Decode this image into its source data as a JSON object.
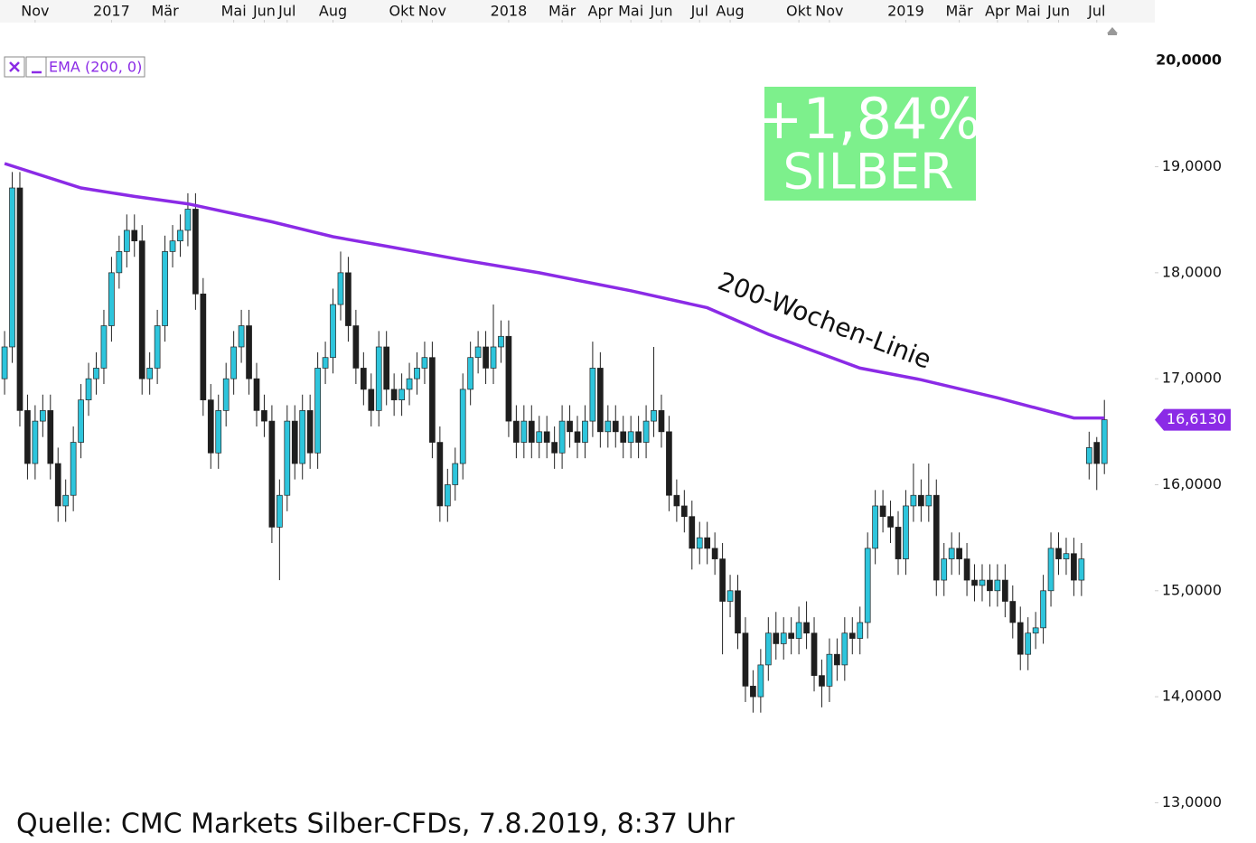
{
  "chart_data": {
    "type": "candlestick",
    "source": "Quelle: CMC Markets Silber-CFDs, 7.8.2019, 8:37 Uhr",
    "badge": {
      "change": "+1,84%",
      "name": "SILBER"
    },
    "annotation": "200-Wochen-Linie",
    "last_price": {
      "value": 16.613,
      "label": "16,6130"
    },
    "up_color": "#2ec5dc",
    "down_color": "#1e1e1e",
    "xlim": [
      -0.6,
      150.6
    ],
    "ylim": [
      12.62,
      20.36
    ],
    "yticks": [
      {
        "value": 13,
        "label": "13,0000"
      },
      {
        "value": 14,
        "label": "14,0000"
      },
      {
        "value": 15,
        "label": "15,0000"
      },
      {
        "value": 16,
        "label": "16,0000"
      },
      {
        "value": 17,
        "label": "17,0000"
      },
      {
        "value": 18,
        "label": "18,0000"
      },
      {
        "value": 19,
        "label": "19,0000"
      },
      {
        "value": 20,
        "label": "20,0000"
      }
    ],
    "xticks": [
      {
        "value": 4,
        "label": "Nov"
      },
      {
        "value": 14,
        "label": "2017"
      },
      {
        "value": 21,
        "label": "Mär"
      },
      {
        "value": 30,
        "label": "Mai"
      },
      {
        "value": 34,
        "label": "Jun"
      },
      {
        "value": 37,
        "label": "Jul"
      },
      {
        "value": 43,
        "label": "Aug"
      },
      {
        "value": 52,
        "label": "Okt"
      },
      {
        "value": 56,
        "label": "Nov"
      },
      {
        "value": 66,
        "label": "2018"
      },
      {
        "value": 73,
        "label": "Mär"
      },
      {
        "value": 78,
        "label": "Apr"
      },
      {
        "value": 82,
        "label": "Mai"
      },
      {
        "value": 86,
        "label": "Jun"
      },
      {
        "value": 91,
        "label": "Jul"
      },
      {
        "value": 95,
        "label": "Aug"
      },
      {
        "value": 104,
        "label": "Okt"
      },
      {
        "value": 108,
        "label": "Nov"
      },
      {
        "value": 118,
        "label": "2019"
      },
      {
        "value": 125,
        "label": "Mär"
      },
      {
        "value": 130,
        "label": "Apr"
      },
      {
        "value": 134,
        "label": "Mai"
      },
      {
        "value": 138,
        "label": "Jun"
      },
      {
        "value": 143,
        "label": "Jul"
      }
    ],
    "ema": {
      "name": "EMA (200, 0)",
      "color": "#8b2be6",
      "x": [
        0,
        10,
        17,
        24,
        35,
        43,
        50,
        60,
        70,
        82,
        92,
        100,
        112,
        120,
        130,
        140,
        144
      ],
      "values": [
        19.03,
        18.8,
        18.72,
        18.65,
        18.48,
        18.34,
        18.25,
        18.12,
        18.0,
        17.83,
        17.67,
        17.42,
        17.1,
        16.99,
        16.82,
        16.63,
        16.63
      ]
    },
    "candles": [
      [
        17.0,
        17.45,
        16.85,
        17.3
      ],
      [
        17.3,
        18.95,
        17.15,
        18.8
      ],
      [
        18.8,
        18.95,
        16.55,
        16.7
      ],
      [
        16.7,
        16.85,
        16.05,
        16.2
      ],
      [
        16.2,
        16.75,
        16.05,
        16.6
      ],
      [
        16.6,
        16.85,
        16.45,
        16.7
      ],
      [
        16.7,
        16.85,
        16.05,
        16.2
      ],
      [
        16.2,
        16.35,
        15.65,
        15.8
      ],
      [
        15.8,
        16.05,
        15.65,
        15.9
      ],
      [
        15.9,
        16.55,
        15.75,
        16.4
      ],
      [
        16.4,
        16.95,
        16.25,
        16.8
      ],
      [
        16.8,
        17.15,
        16.65,
        17.0
      ],
      [
        17.0,
        17.25,
        16.85,
        17.1
      ],
      [
        17.1,
        17.65,
        16.95,
        17.5
      ],
      [
        17.5,
        18.15,
        17.35,
        18.0
      ],
      [
        18.0,
        18.35,
        17.85,
        18.2
      ],
      [
        18.2,
        18.55,
        18.05,
        18.4
      ],
      [
        18.4,
        18.55,
        18.15,
        18.3
      ],
      [
        18.3,
        18.45,
        16.85,
        17.0
      ],
      [
        17.0,
        17.25,
        16.85,
        17.1
      ],
      [
        17.1,
        17.65,
        16.95,
        17.5
      ],
      [
        17.5,
        18.35,
        17.35,
        18.2
      ],
      [
        18.2,
        18.45,
        18.05,
        18.3
      ],
      [
        18.3,
        18.55,
        18.15,
        18.4
      ],
      [
        18.4,
        18.75,
        18.25,
        18.6
      ],
      [
        18.6,
        18.75,
        17.65,
        17.8
      ],
      [
        17.8,
        17.95,
        16.65,
        16.8
      ],
      [
        16.8,
        16.95,
        16.15,
        16.3
      ],
      [
        16.3,
        16.85,
        16.15,
        16.7
      ],
      [
        16.7,
        17.15,
        16.55,
        17.0
      ],
      [
        17.0,
        17.45,
        16.85,
        17.3
      ],
      [
        17.3,
        17.65,
        17.15,
        17.5
      ],
      [
        17.5,
        17.65,
        16.85,
        17.0
      ],
      [
        17.0,
        17.15,
        16.55,
        16.7
      ],
      [
        16.7,
        16.85,
        16.45,
        16.6
      ],
      [
        16.6,
        16.75,
        15.45,
        15.6
      ],
      [
        15.6,
        16.05,
        15.1,
        15.9
      ],
      [
        15.9,
        16.75,
        15.75,
        16.6
      ],
      [
        16.6,
        16.75,
        16.05,
        16.2
      ],
      [
        16.2,
        16.85,
        16.05,
        16.7
      ],
      [
        16.7,
        16.85,
        16.15,
        16.3
      ],
      [
        16.3,
        17.25,
        16.15,
        17.1
      ],
      [
        17.1,
        17.35,
        16.95,
        17.2
      ],
      [
        17.2,
        17.85,
        17.05,
        17.7
      ],
      [
        17.7,
        18.2,
        17.55,
        18.0
      ],
      [
        18.0,
        18.15,
        17.35,
        17.5
      ],
      [
        17.5,
        17.65,
        16.95,
        17.1
      ],
      [
        17.1,
        17.25,
        16.75,
        16.9
      ],
      [
        16.9,
        17.05,
        16.55,
        16.7
      ],
      [
        16.7,
        17.45,
        16.55,
        17.3
      ],
      [
        17.3,
        17.45,
        16.75,
        16.9
      ],
      [
        16.9,
        17.05,
        16.65,
        16.8
      ],
      [
        16.8,
        17.05,
        16.65,
        16.9
      ],
      [
        16.9,
        17.15,
        16.75,
        17.0
      ],
      [
        17.0,
        17.25,
        16.85,
        17.1
      ],
      [
        17.1,
        17.35,
        16.95,
        17.2
      ],
      [
        17.2,
        17.35,
        16.25,
        16.4
      ],
      [
        16.4,
        16.55,
        15.65,
        15.8
      ],
      [
        15.8,
        16.15,
        15.65,
        16.0
      ],
      [
        16.0,
        16.35,
        15.85,
        16.2
      ],
      [
        16.2,
        17.05,
        16.05,
        16.9
      ],
      [
        16.9,
        17.35,
        16.75,
        17.2
      ],
      [
        17.2,
        17.45,
        17.05,
        17.3
      ],
      [
        17.3,
        17.45,
        16.95,
        17.1
      ],
      [
        17.1,
        17.7,
        16.95,
        17.3
      ],
      [
        17.3,
        17.55,
        17.15,
        17.4
      ],
      [
        17.4,
        17.55,
        16.45,
        16.6
      ],
      [
        16.6,
        16.75,
        16.25,
        16.4
      ],
      [
        16.4,
        16.75,
        16.25,
        16.6
      ],
      [
        16.6,
        16.75,
        16.25,
        16.4
      ],
      [
        16.4,
        16.65,
        16.25,
        16.5
      ],
      [
        16.5,
        16.65,
        16.25,
        16.4
      ],
      [
        16.4,
        16.55,
        16.15,
        16.3
      ],
      [
        16.3,
        16.75,
        16.15,
        16.6
      ],
      [
        16.6,
        16.75,
        16.35,
        16.5
      ],
      [
        16.5,
        16.65,
        16.25,
        16.4
      ],
      [
        16.4,
        16.75,
        16.25,
        16.6
      ],
      [
        16.6,
        17.35,
        16.45,
        17.1
      ],
      [
        17.1,
        17.25,
        16.35,
        16.5
      ],
      [
        16.5,
        16.75,
        16.35,
        16.6
      ],
      [
        16.6,
        16.75,
        16.35,
        16.5
      ],
      [
        16.5,
        16.65,
        16.25,
        16.4
      ],
      [
        16.4,
        16.65,
        16.25,
        16.5
      ],
      [
        16.5,
        16.65,
        16.25,
        16.4
      ],
      [
        16.4,
        16.75,
        16.25,
        16.6
      ],
      [
        16.6,
        17.3,
        16.45,
        16.7
      ],
      [
        16.7,
        16.85,
        16.35,
        16.5
      ],
      [
        16.5,
        16.65,
        15.75,
        15.9
      ],
      [
        15.9,
        16.05,
        15.65,
        15.8
      ],
      [
        15.8,
        15.95,
        15.55,
        15.7
      ],
      [
        15.7,
        15.85,
        15.2,
        15.4
      ],
      [
        15.4,
        15.65,
        15.25,
        15.5
      ],
      [
        15.5,
        15.65,
        15.25,
        15.4
      ],
      [
        15.4,
        15.55,
        15.15,
        15.3
      ],
      [
        15.3,
        15.45,
        14.4,
        14.9
      ],
      [
        14.9,
        15.15,
        14.75,
        15.0
      ],
      [
        15.0,
        15.15,
        14.45,
        14.6
      ],
      [
        14.6,
        14.75,
        13.95,
        14.1
      ],
      [
        14.1,
        14.25,
        13.85,
        14.0
      ],
      [
        14.0,
        14.45,
        13.85,
        14.3
      ],
      [
        14.3,
        14.75,
        14.15,
        14.6
      ],
      [
        14.6,
        14.8,
        14.35,
        14.5
      ],
      [
        14.5,
        14.75,
        14.35,
        14.6
      ],
      [
        14.6,
        14.75,
        14.4,
        14.55
      ],
      [
        14.55,
        14.85,
        14.4,
        14.7
      ],
      [
        14.7,
        14.9,
        14.45,
        14.6
      ],
      [
        14.6,
        14.75,
        14.05,
        14.2
      ],
      [
        14.2,
        14.35,
        13.9,
        14.1
      ],
      [
        14.1,
        14.55,
        13.95,
        14.4
      ],
      [
        14.4,
        14.55,
        14.15,
        14.3
      ],
      [
        14.3,
        14.75,
        14.15,
        14.6
      ],
      [
        14.6,
        14.75,
        14.4,
        14.55
      ],
      [
        14.55,
        14.85,
        14.4,
        14.7
      ],
      [
        14.7,
        15.55,
        14.55,
        15.4
      ],
      [
        15.4,
        15.95,
        15.25,
        15.8
      ],
      [
        15.8,
        15.95,
        15.55,
        15.7
      ],
      [
        15.7,
        15.85,
        15.45,
        15.6
      ],
      [
        15.6,
        15.75,
        15.15,
        15.3
      ],
      [
        15.3,
        15.95,
        15.15,
        15.8
      ],
      [
        15.8,
        16.2,
        15.65,
        15.9
      ],
      [
        15.9,
        16.05,
        15.65,
        15.8
      ],
      [
        15.8,
        16.2,
        15.65,
        15.9
      ],
      [
        15.9,
        16.05,
        14.95,
        15.1
      ],
      [
        15.1,
        15.45,
        14.95,
        15.3
      ],
      [
        15.3,
        15.55,
        15.15,
        15.4
      ],
      [
        15.4,
        15.55,
        15.15,
        15.3
      ],
      [
        15.3,
        15.45,
        14.95,
        15.1
      ],
      [
        15.1,
        15.25,
        14.9,
        15.05
      ],
      [
        15.05,
        15.25,
        14.9,
        15.1
      ],
      [
        15.1,
        15.25,
        14.85,
        15.0
      ],
      [
        15.0,
        15.25,
        14.85,
        15.1
      ],
      [
        15.1,
        15.25,
        14.75,
        14.9
      ],
      [
        14.9,
        15.05,
        14.55,
        14.7
      ],
      [
        14.7,
        14.85,
        14.25,
        14.4
      ],
      [
        14.4,
        14.75,
        14.25,
        14.6
      ],
      [
        14.6,
        14.8,
        14.45,
        14.65
      ],
      [
        14.65,
        15.15,
        14.5,
        15.0
      ],
      [
        15.0,
        15.55,
        14.85,
        15.4
      ],
      [
        15.4,
        15.55,
        15.15,
        15.3
      ],
      [
        15.3,
        15.5,
        15.15,
        15.35
      ],
      [
        15.35,
        15.5,
        14.95,
        15.1
      ],
      [
        15.1,
        15.45,
        14.95,
        15.3
      ],
      [
        16.2,
        16.5,
        16.05,
        16.35
      ],
      [
        16.4,
        16.45,
        15.95,
        16.2
      ],
      [
        16.2,
        16.8,
        16.1,
        16.613
      ]
    ]
  }
}
